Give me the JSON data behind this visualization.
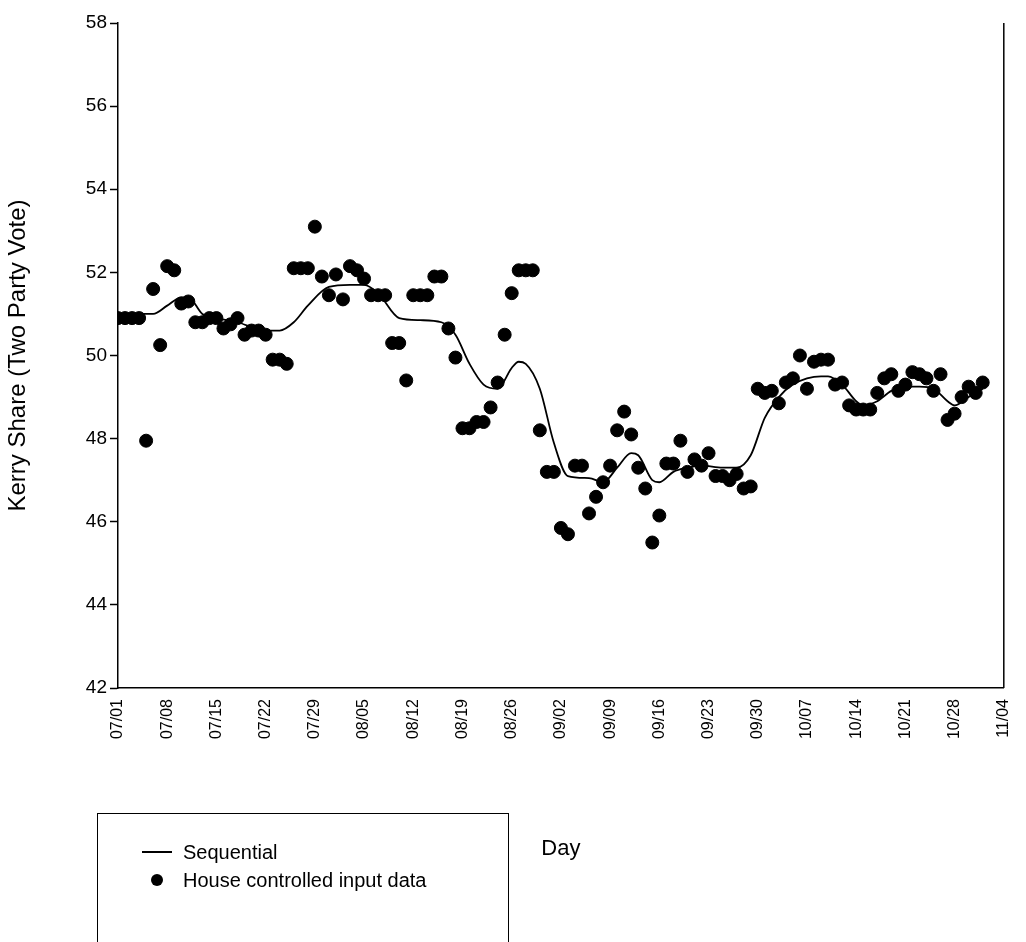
{
  "chart_data": {
    "type": "scatter",
    "xlabel": "Day",
    "ylabel": "Kerry Share (Two Party Vote)",
    "xlim": [
      "--07-01",
      "--11-04"
    ],
    "ylim": [
      42,
      58
    ],
    "xticks": [
      {
        "value": "--07-01",
        "label": "07/01"
      },
      {
        "value": "--07-08",
        "label": "07/08"
      },
      {
        "value": "--07-15",
        "label": "07/15"
      },
      {
        "value": "--07-22",
        "label": "07/22"
      },
      {
        "value": "--07-29",
        "label": "07/29"
      },
      {
        "value": "--08-05",
        "label": "08/05"
      },
      {
        "value": "--08-12",
        "label": "08/12"
      },
      {
        "value": "--08-19",
        "label": "08/19"
      },
      {
        "value": "--08-26",
        "label": "08/26"
      },
      {
        "value": "--09-02",
        "label": "09/02"
      },
      {
        "value": "--09-09",
        "label": "09/09"
      },
      {
        "value": "--09-16",
        "label": "09/16"
      },
      {
        "value": "--09-23",
        "label": "09/23"
      },
      {
        "value": "--09-30",
        "label": "09/30"
      },
      {
        "value": "--10-07",
        "label": "10/07"
      },
      {
        "value": "--10-14",
        "label": "10/14"
      },
      {
        "value": "--10-21",
        "label": "10/21"
      },
      {
        "value": "--10-28",
        "label": "10/28"
      },
      {
        "value": "--11-04",
        "label": "11/04"
      }
    ],
    "yticks": [
      42,
      44,
      46,
      48,
      50,
      52,
      54,
      56,
      58
    ],
    "grid": false,
    "legend": "bottom left",
    "series": [
      {
        "name": "Sequential",
        "type": "line",
        "color": "#000000",
        "marker": "none",
        "line_style": "solid",
        "x": [
          "--07-01",
          "--07-05",
          "--07-06",
          "--07-08",
          "--07-10",
          "--07-11",
          "--07-13",
          "--07-15",
          "--07-18",
          "--07-22",
          "--07-24",
          "--07-26",
          "--07-28",
          "--07-31",
          "--08-03",
          "--08-05",
          "--08-07",
          "--08-10",
          "--08-13",
          "--08-16",
          "--08-18",
          "--08-20",
          "--08-22",
          "--08-24",
          "--08-26",
          "--08-27",
          "--08-28",
          "--08-30",
          "--09-01",
          "--09-03",
          "--09-06",
          "--09-08",
          "--09-10",
          "--09-12",
          "--09-13",
          "--09-15",
          "--09-16",
          "--09-18",
          "--09-20",
          "--09-22",
          "--09-25",
          "--09-27",
          "--09-29",
          "--10-01",
          "--10-03",
          "--10-05",
          "--10-07",
          "--10-09",
          "--10-10",
          "--10-12",
          "--10-14",
          "--10-15",
          "--10-17",
          "--10-19",
          "--10-21",
          "--10-23",
          "--10-25",
          "--10-27",
          "--10-28",
          "--10-30",
          "--11-01"
        ],
        "values": [
          51.0,
          51.0,
          51.0,
          51.2,
          51.4,
          51.4,
          51.0,
          50.9,
          50.8,
          50.6,
          50.6,
          50.8,
          51.2,
          51.65,
          51.7,
          51.7,
          51.5,
          50.9,
          50.85,
          50.8,
          50.5,
          49.8,
          49.3,
          49.2,
          49.7,
          49.85,
          49.8,
          49.2,
          47.9,
          47.1,
          47.05,
          46.95,
          47.3,
          47.65,
          47.6,
          47.0,
          46.95,
          47.2,
          47.3,
          47.35,
          47.3,
          47.3,
          47.6,
          48.5,
          49.0,
          49.3,
          49.45,
          49.5,
          49.5,
          49.3,
          48.9,
          48.8,
          48.9,
          49.15,
          49.25,
          49.25,
          49.2,
          48.9,
          48.8,
          49.0,
          49.2
        ]
      },
      {
        "name": "House controlled input data",
        "color": "#000000",
        "marker": "circle",
        "x": [
          "--07-01",
          "--07-02",
          "--07-03",
          "--07-04",
          "--07-05",
          "--07-06",
          "--07-07",
          "--07-08",
          "--07-09",
          "--07-10",
          "--07-11",
          "--07-12",
          "--07-13",
          "--07-14",
          "--07-15",
          "--07-16",
          "--07-17",
          "--07-18",
          "--07-19",
          "--07-20",
          "--07-21",
          "--07-22",
          "--07-23",
          "--07-24",
          "--07-25",
          "--07-26",
          "--07-27",
          "--07-28",
          "--07-29",
          "--07-30",
          "--07-31",
          "--08-01",
          "--08-02",
          "--08-03",
          "--08-04",
          "--08-05",
          "--08-06",
          "--08-07",
          "--08-08",
          "--08-09",
          "--08-10",
          "--08-11",
          "--08-12",
          "--08-13",
          "--08-14",
          "--08-15",
          "--08-16",
          "--08-17",
          "--08-18",
          "--08-19",
          "--08-20",
          "--08-21",
          "--08-22",
          "--08-23",
          "--08-24",
          "--08-25",
          "--08-26",
          "--08-27",
          "--08-28",
          "--08-29",
          "--08-30",
          "--08-31",
          "--09-01",
          "--09-02",
          "--09-03",
          "--09-04",
          "--09-05",
          "--09-06",
          "--09-07",
          "--09-08",
          "--09-09",
          "--09-10",
          "--09-11",
          "--09-12",
          "--09-13",
          "--09-14",
          "--09-15",
          "--09-16",
          "--09-17",
          "--09-18",
          "--09-19",
          "--09-20",
          "--09-21",
          "--09-22",
          "--09-23",
          "--09-24",
          "--09-25",
          "--09-26",
          "--09-27",
          "--09-28",
          "--09-29",
          "--09-30",
          "--10-01",
          "--10-02",
          "--10-03",
          "--10-04",
          "--10-05",
          "--10-06",
          "--10-07",
          "--10-08",
          "--10-09",
          "--10-10",
          "--10-11",
          "--10-12",
          "--10-13",
          "--10-14",
          "--10-15",
          "--10-16",
          "--10-17",
          "--10-18",
          "--10-19",
          "--10-20",
          "--10-21",
          "--10-22",
          "--10-23",
          "--10-24",
          "--10-25",
          "--10-26",
          "--10-27",
          "--10-28",
          "--10-29",
          "--10-30",
          "--10-31",
          "--11-01"
        ],
        "values": [
          50.9,
          50.9,
          50.9,
          50.9,
          47.95,
          51.6,
          50.25,
          52.15,
          52.05,
          51.25,
          51.3,
          50.8,
          50.8,
          50.9,
          50.9,
          50.65,
          50.75,
          50.9,
          50.5,
          50.6,
          50.6,
          50.5,
          49.9,
          49.9,
          49.8,
          52.1,
          52.1,
          52.1,
          53.1,
          51.9,
          51.45,
          51.95,
          51.35,
          52.15,
          52.05,
          51.85,
          51.45,
          51.45,
          51.45,
          50.3,
          50.3,
          49.4,
          51.45,
          51.45,
          51.45,
          51.9,
          51.9,
          50.65,
          49.95,
          48.25,
          48.25,
          48.4,
          48.4,
          48.75,
          49.35,
          50.5,
          51.5,
          52.05,
          52.05,
          52.05,
          48.2,
          47.2,
          47.2,
          45.85,
          45.7,
          47.35,
          47.35,
          46.2,
          46.6,
          46.95,
          47.35,
          48.2,
          48.65,
          48.1,
          47.3,
          46.8,
          45.5,
          46.15,
          47.4,
          47.4,
          47.95,
          47.2,
          47.5,
          47.35,
          47.65,
          47.1,
          47.1,
          47.0,
          47.15,
          46.8,
          46.85,
          49.2,
          49.1,
          49.15,
          48.85,
          49.35,
          49.45,
          50.0,
          49.2,
          49.85,
          49.9,
          49.9,
          49.3,
          49.35,
          48.8,
          48.7,
          48.7,
          48.7,
          49.1,
          49.45,
          49.55,
          49.15,
          49.3,
          49.6,
          49.55,
          49.45,
          49.15,
          49.55,
          48.45,
          48.6,
          49.0,
          49.25,
          49.1,
          49.35
        ]
      }
    ]
  }
}
